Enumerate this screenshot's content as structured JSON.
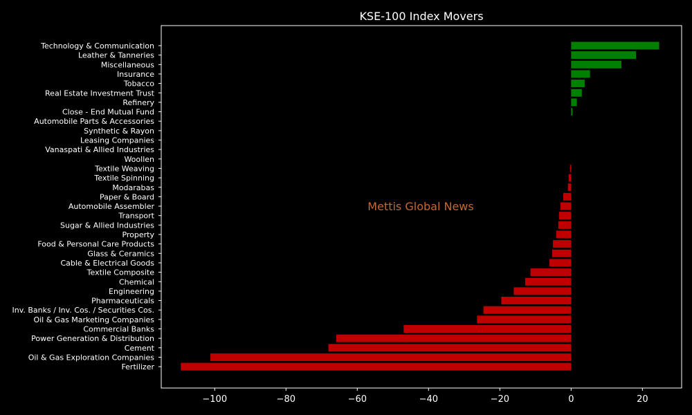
{
  "chart_data": {
    "type": "bar",
    "orientation": "horizontal",
    "title": "KSE-100 Index Movers",
    "watermark": "Mettis Global News",
    "xlabel": "",
    "ylabel": "",
    "xlim": [
      -115,
      31
    ],
    "xticks": [
      -100,
      -80,
      -60,
      -40,
      -20,
      0,
      20
    ],
    "xtick_labels": [
      "−100",
      "−80",
      "−60",
      "−40",
      "−20",
      "0",
      "20"
    ],
    "grid": false,
    "colors": {
      "positive": "#008000",
      "negative": "#c00000",
      "background": "#000000",
      "axes": "#ffffff",
      "watermark": "#c8682a"
    },
    "categories": [
      "Technology & Communication",
      "Leather & Tanneries",
      "Miscellaneous",
      "Insurance",
      "Tobacco",
      "Real Estate Investment Trust",
      "Refinery",
      "Close - End Mutual Fund",
      "Automobile Parts & Accessories",
      "Synthetic & Rayon",
      "Leasing Companies",
      "Vanaspati & Allied Industries",
      "Woollen",
      "Textile Weaving",
      "Textile Spinning",
      "Modarabas",
      "Paper & Board",
      "Automobile Assembler",
      "Transport",
      "Sugar & Allied Industries",
      "Property",
      "Food & Personal Care Products",
      "Glass & Ceramics",
      "Cable & Electrical Goods",
      "Textile Composite",
      "Chemical",
      "Engineering",
      "Pharmaceuticals",
      "Inv. Banks / Inv. Cos. / Securities Cos.",
      "Oil & Gas Marketing Companies",
      "Commercial Banks",
      "Power Generation & Distribution",
      "Cement",
      "Oil & Gas Exploration Companies",
      "Fertilizer"
    ],
    "values": [
      24.7,
      18.2,
      14.1,
      5.3,
      3.8,
      3.0,
      1.6,
      0.4,
      0,
      0,
      0,
      0,
      0,
      -0.3,
      -0.7,
      -0.9,
      -2.2,
      -3.0,
      -3.4,
      -3.6,
      -4.2,
      -5.1,
      -5.3,
      -6.1,
      -11.4,
      -12.9,
      -16.1,
      -19.6,
      -24.6,
      -26.4,
      -47.0,
      -65.9,
      -68.1,
      -101.2,
      -109.5
    ]
  }
}
